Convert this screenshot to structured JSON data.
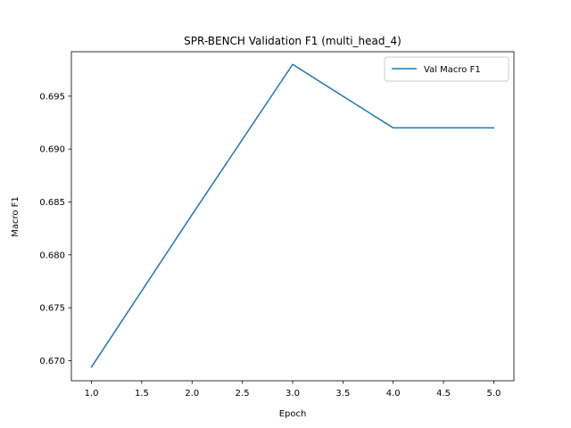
{
  "chart_data": {
    "type": "line",
    "title": "SPR-BENCH Validation F1 (multi_head_4)",
    "xlabel": "Epoch",
    "ylabel": "Macro F1",
    "xlim": [
      0.8,
      5.2
    ],
    "ylim": [
      0.6681,
      0.6992
    ],
    "xticks": [
      "1.0",
      "1.5",
      "2.0",
      "2.5",
      "3.0",
      "3.5",
      "4.0",
      "4.5",
      "5.0"
    ],
    "yticks": [
      "0.670",
      "0.675",
      "0.680",
      "0.685",
      "0.690",
      "0.695"
    ],
    "grid": false,
    "legend_position": "upper-right",
    "series": [
      {
        "name": "Val Macro F1",
        "color": "#1f77b4",
        "x": [
          1,
          2,
          3,
          4,
          5
        ],
        "y": [
          0.6694,
          0.6838,
          0.698,
          0.692,
          0.692
        ]
      }
    ]
  }
}
